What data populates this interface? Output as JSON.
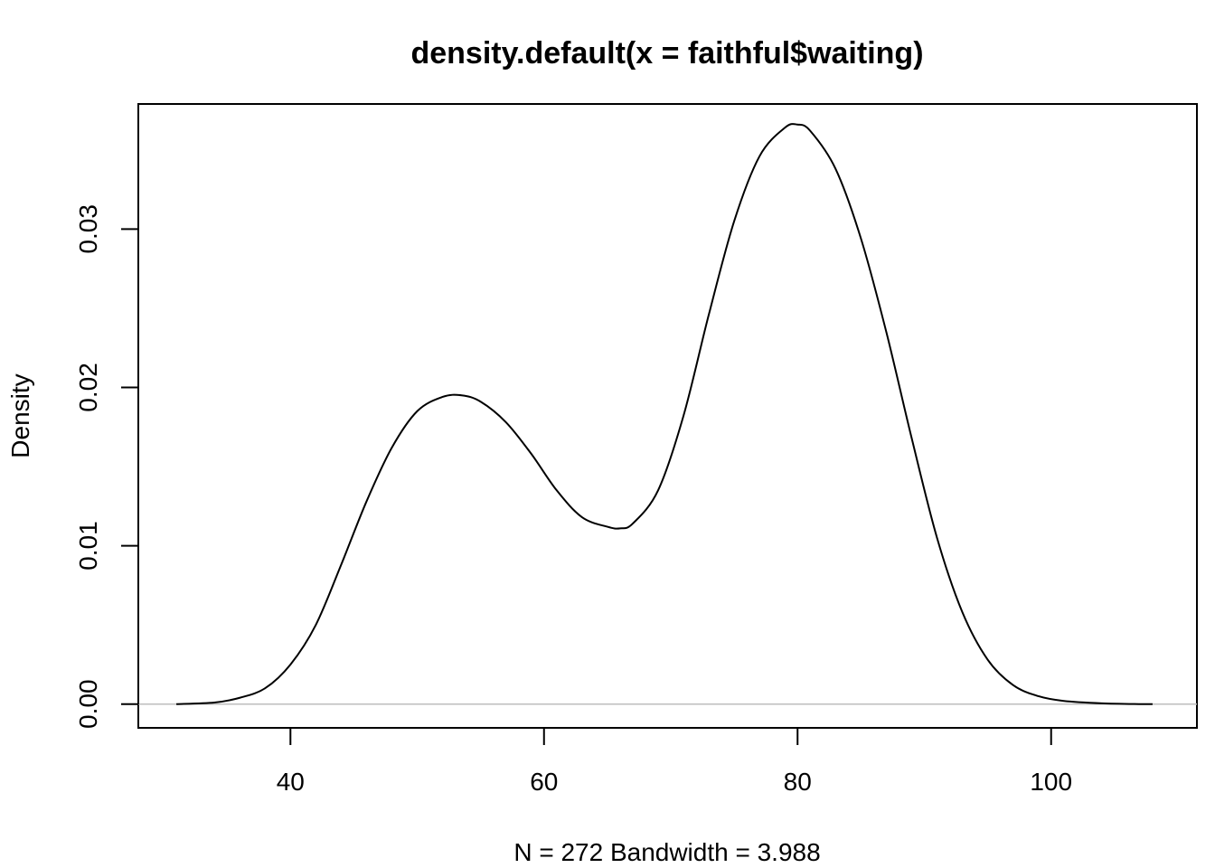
{
  "chart_data": {
    "type": "line",
    "title": "density.default(x = faithful$waiting)",
    "xlabel": "N = 272   Bandwidth = 3.988",
    "ylabel": "Density",
    "xlim": [
      28,
      111.5
    ],
    "ylim": [
      -0.0015,
      0.0379
    ],
    "x_ticks": [
      40,
      60,
      80,
      100
    ],
    "x_tick_labels": [
      "40",
      "60",
      "80",
      "100"
    ],
    "y_ticks": [
      0,
      0.01,
      0.02,
      0.03
    ],
    "y_tick_labels": [
      "0.00",
      "0.01",
      "0.02",
      "0.03"
    ],
    "grid": false,
    "baseline": 0,
    "series": [
      {
        "x": [
          31,
          34,
          36,
          38,
          40,
          42,
          44,
          46,
          48,
          50,
          52,
          53.5,
          55,
          57,
          59,
          61,
          63,
          65,
          66,
          67,
          69,
          71,
          73,
          75,
          77,
          79,
          80,
          81,
          83,
          85,
          87,
          89,
          91,
          93,
          95,
          97,
          99,
          101,
          104,
          107,
          108
        ],
        "y": [
          0.0,
          0.0001,
          0.0004,
          0.001,
          0.0025,
          0.005,
          0.0088,
          0.0128,
          0.0162,
          0.0185,
          0.0194,
          0.0195,
          0.0191,
          0.0178,
          0.0158,
          0.0135,
          0.0118,
          0.0112,
          0.0111,
          0.0114,
          0.0135,
          0.0182,
          0.0246,
          0.0305,
          0.0346,
          0.0364,
          0.0366,
          0.0362,
          0.0338,
          0.0294,
          0.0235,
          0.0168,
          0.0105,
          0.0058,
          0.0028,
          0.0012,
          0.0005,
          0.0002,
          5e-05,
          0.0,
          0.0
        ]
      }
    ]
  }
}
